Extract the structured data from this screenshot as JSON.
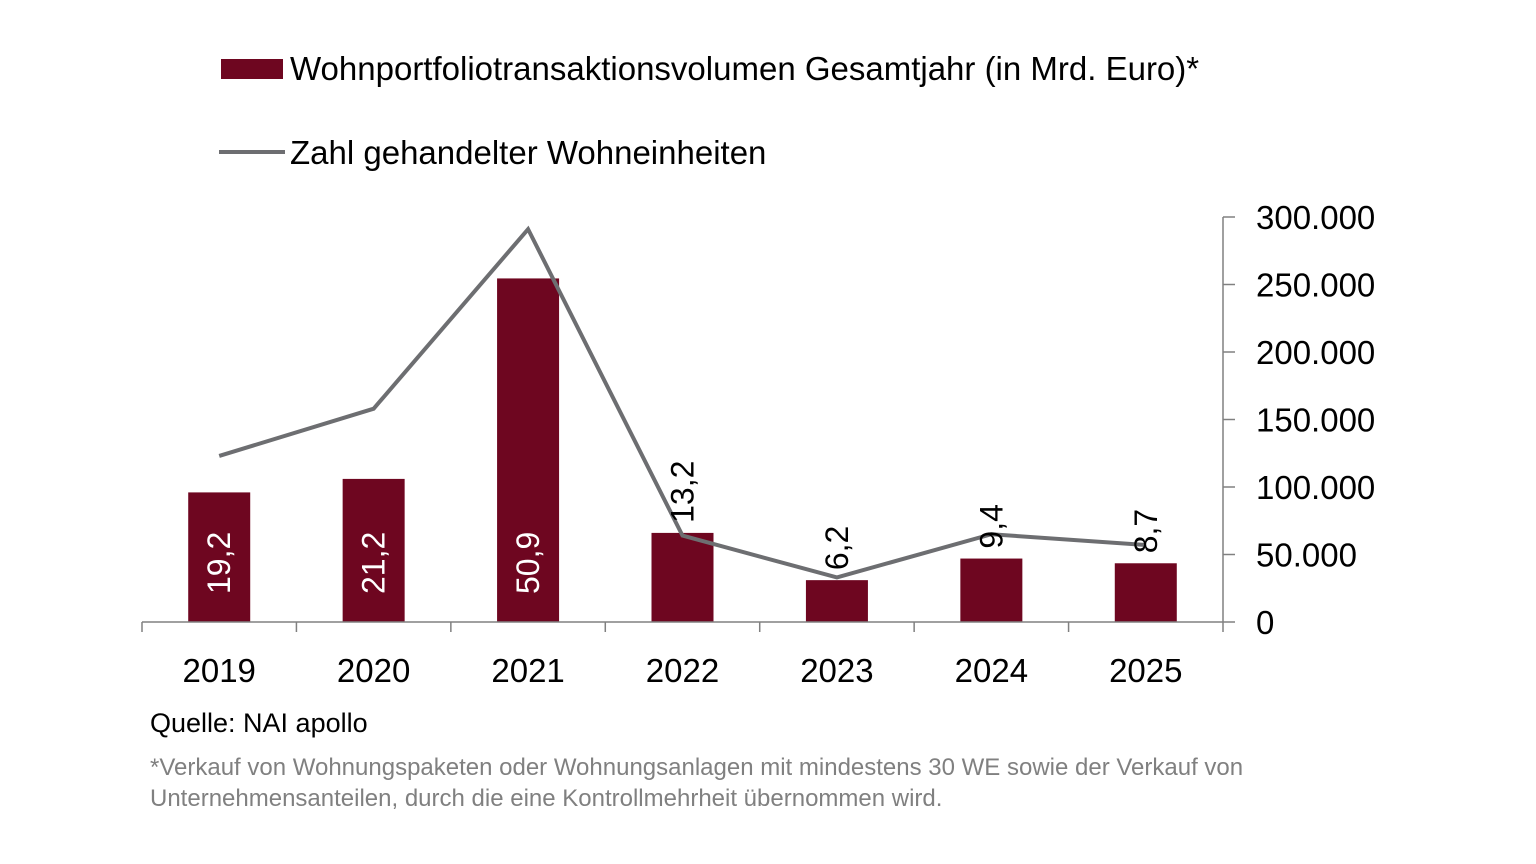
{
  "chart_data": {
    "type": "bar+line",
    "categories": [
      "2019",
      "2020",
      "2021",
      "2022",
      "2023",
      "2024",
      "2025"
    ],
    "series": [
      {
        "name": "Wohnportfoliotransaktionsvolumen Gesamtjahr (in Mrd. Euro)*",
        "type": "bar",
        "axis": "left-hidden",
        "values": [
          19.2,
          21.2,
          50.9,
          13.2,
          6.2,
          9.4,
          8.7
        ],
        "labels": [
          "19,2",
          "21,2",
          "50,9",
          "13,2",
          "6,2",
          "9,4",
          "8,7"
        ],
        "color": "#6e0620"
      },
      {
        "name": "Zahl gehandelter Wohneinheiten",
        "type": "line",
        "axis": "right",
        "values": [
          123000,
          158000,
          291000,
          64000,
          33000,
          65000,
          57000
        ],
        "color": "#6d6e71"
      }
    ],
    "bar_axis_range": [
      0,
      60
    ],
    "y2lim": [
      0,
      300000
    ],
    "y2_ticks": [
      "0",
      "50.000",
      "100.000",
      "150.000",
      "200.000",
      "250.000",
      "300.000"
    ],
    "legend_position": "top",
    "grid": false
  },
  "source": "Quelle: NAI apollo",
  "footnote": "*Verkauf von Wohnungspaketen oder Wohnungsanlagen mit mindestens 30 WE sowie der Verkauf von Unternehmensanteilen, durch die eine Kontrollmehrheit übernommen wird."
}
